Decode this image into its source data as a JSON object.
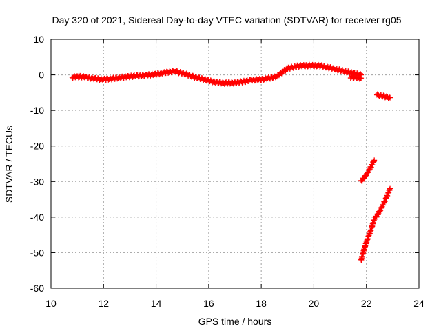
{
  "chart_data": {
    "type": "scatter",
    "title": "Day 320 of 2021, Sidereal Day-to-day VTEC variation (SDTVAR) for receiver rg05",
    "xlabel": "GPS time / hours",
    "ylabel": "SDTVAR / TECUs",
    "xlim": [
      10,
      24
    ],
    "ylim": [
      -60,
      10
    ],
    "xticks": [
      "10",
      "12",
      "14",
      "16",
      "18",
      "20",
      "22",
      "24"
    ],
    "yticks": [
      "10",
      "0",
      "-10",
      "-20",
      "-30",
      "-40",
      "-50",
      "-60"
    ],
    "grid": true,
    "legend": "none",
    "color": "#ff0000",
    "series": [
      {
        "points": [
          [
            10.8,
            -0.6
          ],
          [
            11.2,
            -0.5
          ],
          [
            11.6,
            -1.0
          ],
          [
            12.0,
            -1.3
          ],
          [
            12.4,
            -1.0
          ],
          [
            12.8,
            -0.6
          ],
          [
            13.2,
            -0.3
          ],
          [
            13.6,
            -0.1
          ],
          [
            14.0,
            0.2
          ],
          [
            14.4,
            0.7
          ],
          [
            14.7,
            1.1
          ],
          [
            14.8,
            0.8
          ],
          [
            15.1,
            0.3
          ],
          [
            15.4,
            -0.5
          ],
          [
            15.8,
            -1.2
          ],
          [
            16.2,
            -2.0
          ],
          [
            16.6,
            -2.3
          ],
          [
            17.0,
            -2.2
          ],
          [
            17.4,
            -1.8
          ],
          [
            17.6,
            -1.5
          ],
          [
            18.0,
            -1.3
          ],
          [
            18.4,
            -0.8
          ],
          [
            18.6,
            -0.3
          ],
          [
            18.8,
            0.8
          ],
          [
            19.0,
            1.8
          ],
          [
            19.4,
            2.5
          ],
          [
            19.8,
            2.6
          ],
          [
            20.2,
            2.6
          ],
          [
            20.6,
            2.0
          ],
          [
            21.0,
            1.3
          ],
          [
            21.4,
            0.6
          ],
          [
            21.8,
            0.0
          ]
        ]
      },
      {
        "points": [
          [
            21.4,
            -0.6
          ],
          [
            21.8,
            -0.9
          ]
        ]
      },
      {
        "points": [
          [
            22.4,
            -5.6
          ],
          [
            22.9,
            -6.4
          ]
        ]
      },
      {
        "points": [
          [
            21.8,
            -30.0
          ],
          [
            22.0,
            -28.0
          ],
          [
            22.2,
            -25.5
          ],
          [
            22.3,
            -24.0
          ]
        ]
      },
      {
        "points": [
          [
            21.8,
            -52.0
          ],
          [
            21.9,
            -49.5
          ],
          [
            22.0,
            -47.0
          ],
          [
            22.2,
            -43.0
          ],
          [
            22.3,
            -40.5
          ],
          [
            22.5,
            -38.5
          ],
          [
            22.7,
            -35.5
          ],
          [
            22.9,
            -32.0
          ]
        ]
      }
    ]
  }
}
